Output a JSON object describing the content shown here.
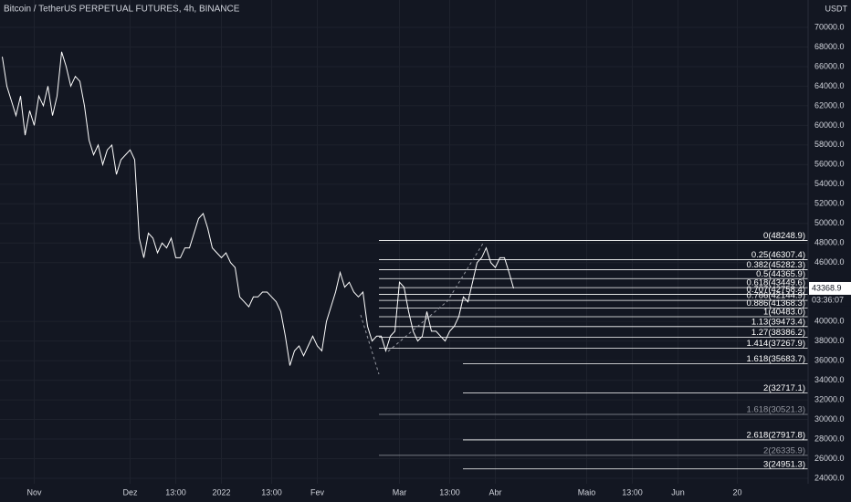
{
  "chart_data": {
    "type": "line",
    "title": "Bitcoin / TetherUS PERPETUAL FUTURES, 4h, BINANCE",
    "currency": "USDT",
    "countdown": "03:36:07",
    "color": "#ffffff",
    "grid": true,
    "categories": [
      null,
      null,
      null,
      null,
      null,
      null,
      null,
      "Nov",
      null,
      null,
      null,
      null,
      null,
      null,
      null,
      null,
      null,
      null,
      null,
      null,
      null,
      null,
      null,
      null,
      null,
      null,
      null,
      null,
      "Dez",
      null,
      null,
      null,
      null,
      null,
      null,
      null,
      null,
      null,
      "13:00",
      null,
      null,
      null,
      null,
      null,
      null,
      null,
      null,
      null,
      "2022",
      null,
      null,
      null,
      null,
      null,
      null,
      null,
      null,
      null,
      null,
      "13:00",
      null,
      null,
      null,
      null,
      null,
      null,
      null,
      null,
      null,
      "Fev",
      null,
      null,
      null,
      null,
      null,
      null,
      null,
      null,
      null,
      null,
      null,
      null,
      null,
      null,
      null,
      null,
      null,
      "Mar",
      null,
      null,
      null,
      null,
      null,
      null,
      null,
      null,
      null,
      null,
      "13:00",
      null,
      null,
      null,
      null,
      null,
      null,
      null,
      null,
      null,
      "Abr",
      null,
      null,
      null,
      null,
      null,
      null,
      null,
      null,
      null,
      null,
      null,
      null,
      null,
      null,
      null,
      null,
      null,
      null,
      null,
      "Maio",
      null,
      null,
      null,
      null,
      null,
      null,
      null,
      null,
      null,
      "13:00",
      null,
      null,
      null,
      null,
      null,
      null,
      null,
      null,
      null,
      "Jun",
      null,
      null,
      null,
      null,
      null,
      null,
      null,
      null,
      null,
      null,
      null,
      null,
      "20",
      null,
      null,
      null,
      null,
      null,
      null,
      null,
      null,
      null,
      null,
      null,
      null,
      null,
      null,
      null
    ],
    "values": [
      67000,
      64000,
      62500,
      61000,
      63000,
      59000,
      61500,
      60000,
      63000,
      62000,
      64000,
      61000,
      63000,
      67500,
      66000,
      64000,
      65000,
      64500,
      62000,
      58500,
      57000,
      58000,
      56000,
      57500,
      58000,
      55000,
      56500,
      57000,
      57500,
      56500,
      48500,
      46500,
      49000,
      48500,
      47000,
      48000,
      47500,
      48500,
      46500,
      46500,
      47500,
      47500,
      49000,
      50500,
      51000,
      49500,
      47500,
      47000,
      46500,
      47000,
      46000,
      45500,
      42500,
      42000,
      41500,
      42500,
      42500,
      43000,
      43000,
      42500,
      42000,
      41000,
      38500,
      35500,
      37000,
      37500,
      36500,
      37500,
      38500,
      37500,
      37000,
      40000,
      41500,
      43000,
      45000,
      43500,
      44000,
      43000,
      42500,
      43000,
      39500,
      38000,
      38500,
      38500,
      37000,
      38500,
      39000,
      44000,
      43500,
      41000,
      39000,
      38000,
      38500,
      41000,
      39000,
      39000,
      38500,
      38000,
      39000,
      39500,
      40500,
      42500,
      42000,
      44000,
      46000,
      46500,
      47500,
      46000,
      45500,
      46500,
      46500,
      45000,
      43368.9,
      null,
      null,
      null,
      null,
      null,
      null,
      null,
      null,
      null,
      null,
      null,
      null,
      null,
      null,
      null,
      null,
      null,
      null,
      null,
      null,
      null,
      null,
      null,
      null,
      null,
      null,
      null,
      null,
      null,
      null,
      null,
      null,
      null,
      null,
      null,
      null,
      null,
      null,
      null,
      null,
      null,
      null,
      null,
      null,
      null,
      null,
      null,
      null,
      null,
      null,
      null,
      null,
      null,
      null,
      null,
      null,
      null,
      null,
      null,
      null,
      null,
      null,
      null,
      null
    ],
    "ylim": [
      23441,
      72793
    ],
    "yticks": [
      {
        "value": 24000,
        "label": "24000.0"
      },
      {
        "value": 26000,
        "label": "26000.0"
      },
      {
        "value": 28000,
        "label": "28000.0"
      },
      {
        "value": 30000,
        "label": "30000.0"
      },
      {
        "value": 32000,
        "label": "32000.0"
      },
      {
        "value": 34000,
        "label": "34000.0"
      },
      {
        "value": 36000,
        "label": "36000.0"
      },
      {
        "value": 38000,
        "label": "38000.0"
      },
      {
        "value": 40000,
        "label": "40000.0"
      },
      {
        "value": 46000,
        "label": "46000.0"
      },
      {
        "value": 48000,
        "label": "48000.0"
      },
      {
        "value": 50000,
        "label": "50000.0"
      },
      {
        "value": 52000,
        "label": "52000.0"
      },
      {
        "value": 54000,
        "label": "54000.0"
      },
      {
        "value": 56000,
        "label": "56000.0"
      },
      {
        "value": 58000,
        "label": "58000.0"
      },
      {
        "value": 60000,
        "label": "60000.0"
      },
      {
        "value": 62000,
        "label": "62000.0"
      },
      {
        "value": 64000,
        "label": "64000.0"
      },
      {
        "value": 66000,
        "label": "66000.0"
      },
      {
        "value": 68000,
        "label": "68000.0"
      },
      {
        "value": 70000,
        "label": "70000.0"
      }
    ],
    "fib_a": [
      {
        "value": 48248.9,
        "label": "0(48248.9)",
        "color": "#ffffff"
      },
      {
        "value": 46307.4,
        "label": "0.25(46307.4)",
        "color": "#ffffff"
      },
      {
        "value": 45282.3,
        "label": "0.382(45282.3)",
        "color": "#ffffff"
      },
      {
        "value": 44365.9,
        "label": "0.5(44365.9)",
        "color": "#ffffff"
      },
      {
        "value": 43449.6,
        "label": "0.618(43449.6)",
        "color": "#ffffff"
      },
      {
        "value": 42758.4,
        "label": "0.707(42758.4)",
        "color": "#ffffff"
      },
      {
        "value": 42144.9,
        "label": "0.786(42144.9)",
        "color": "#ffffff"
      },
      {
        "value": 41368.3,
        "label": "0.886(41368.3)",
        "color": "#ffffff"
      },
      {
        "value": 40483.0,
        "label": "1(40483.0)",
        "color": "#ffffff"
      },
      {
        "value": 39473.4,
        "label": "1.13(39473.4)",
        "color": "#ffffff"
      },
      {
        "value": 38386.2,
        "label": "1.27(38386.2)",
        "color": "#ffffff"
      },
      {
        "value": 37267.9,
        "label": "1.414(37267.9)",
        "color": "#ffffff"
      },
      {
        "value": 30521.3,
        "label": "1.618(30521.3)",
        "color": "#9598a1"
      },
      {
        "value": 26335.9,
        "label": "2(26335.9)",
        "color": "#9598a1"
      }
    ],
    "fib_b": [
      {
        "value": 35683.7,
        "label": "1.618(35683.7)",
        "color": "#ffffff"
      },
      {
        "value": 32717.1,
        "label": "2(32717.1)",
        "color": "#ffffff"
      },
      {
        "value": 27917.8,
        "label": "2.618(27917.8)",
        "color": "#ffffff"
      },
      {
        "value": 24951.3,
        "label": "3(24951.3)",
        "color": "#ffffff"
      }
    ]
  }
}
